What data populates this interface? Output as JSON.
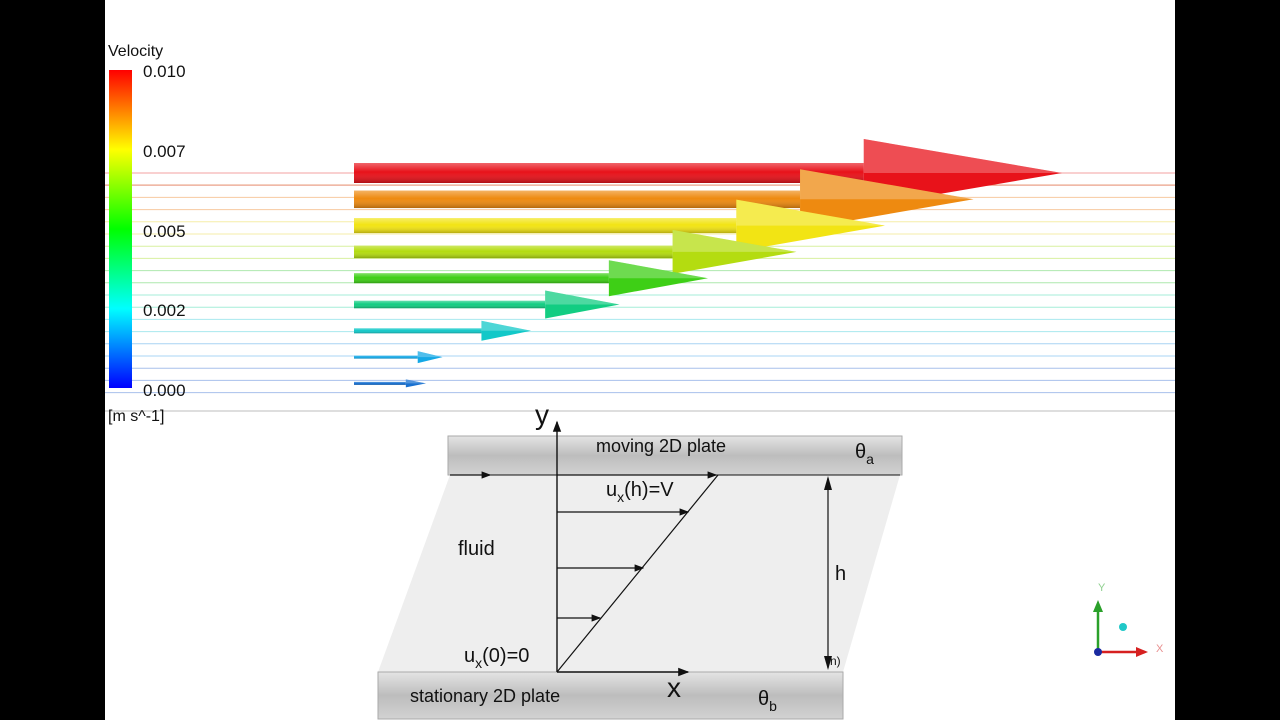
{
  "legend": {
    "title": "Velocity",
    "ticks": [
      "0.010",
      "0.007",
      "0.005",
      "0.002",
      "0.000"
    ],
    "unit": "[m s^-1]",
    "colors": [
      "#ff0000",
      "#ff7f00",
      "#ffff00",
      "#7fff00",
      "#00ff00",
      "#00ff7f",
      "#00ffff",
      "#007fff",
      "#0000ff"
    ]
  },
  "chart_data": {
    "type": "velocity-profile",
    "legend_title": "Velocity",
    "unit": "[m s^-1]",
    "vrange": [
      0.0,
      0.01
    ],
    "vectors": [
      {
        "velocity": 0.01,
        "color": "#e8121a"
      },
      {
        "velocity": 0.00875,
        "color": "#ee8a10"
      },
      {
        "velocity": 0.0075,
        "color": "#f2e414"
      },
      {
        "velocity": 0.00625,
        "color": "#b4dc10"
      },
      {
        "velocity": 0.005,
        "color": "#3ecf16"
      },
      {
        "velocity": 0.00375,
        "color": "#12cd82"
      },
      {
        "velocity": 0.0025,
        "color": "#12c8c8"
      },
      {
        "velocity": 0.00125,
        "color": "#14a8e6"
      },
      {
        "velocity": 0.0,
        "color": "#1870d0"
      }
    ]
  },
  "diagram": {
    "y_axis": "y",
    "x_axis": "x",
    "top_plate": "moving 2D plate",
    "theta_a": {
      "base": "θ",
      "sub": "a"
    },
    "bottom_plate": "stationary 2D plate",
    "theta_b": {
      "base": "θ",
      "sub": "b"
    },
    "fluid": "fluid",
    "top_bc": {
      "pre": "u",
      "sub": "x",
      "post": "(h)=V"
    },
    "bottom_bc": {
      "pre": "u",
      "sub": "x",
      "post": "(0)=0"
    },
    "height": "h",
    "stray_label": "n)"
  },
  "axes_triad": {
    "y": "Y",
    "x": "X"
  }
}
